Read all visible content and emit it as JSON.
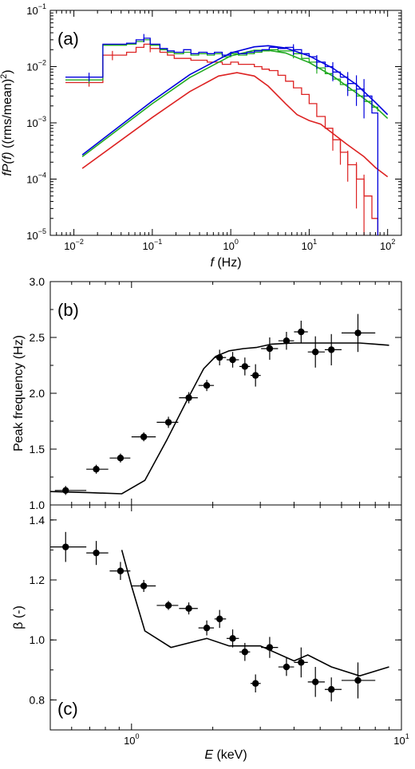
{
  "chart_data": [
    {
      "panel_label": "(a)",
      "type": "line",
      "x_scale": "log",
      "y_scale": "log",
      "xlim": [
        0.005,
        150
      ],
      "ylim": [
        1e-05,
        0.1
      ],
      "xlabel_var": "f",
      "xlabel_unit": " (Hz)",
      "ylabel_var": "fP(f)",
      "ylabel_unit": " ((rms/mean)",
      "ylabel_sup": "2",
      "ylabel_close": ")",
      "x_ticks": [
        {
          "base": "10",
          "exp": "−2",
          "value": 0.01
        },
        {
          "base": "10",
          "exp": "−1",
          "value": 0.1
        },
        {
          "base": "10",
          "exp": "0",
          "value": 1
        },
        {
          "base": "10",
          "exp": "1",
          "value": 10
        },
        {
          "base": "10",
          "exp": "2",
          "value": 100
        }
      ],
      "y_ticks": [
        {
          "base": "10",
          "exp": "−5",
          "value": 1e-05
        },
        {
          "base": "10",
          "exp": "−4",
          "value": 0.0001
        },
        {
          "base": "10",
          "exp": "−3",
          "value": 0.001
        },
        {
          "base": "10",
          "exp": "−2",
          "value": 0.01
        },
        {
          "base": "10",
          "exp": "−1",
          "value": 0.1
        }
      ],
      "series": [
        {
          "color": "#0000dd",
          "step_x": [
            0.0078,
            0.0156,
            0.0234,
            0.031,
            0.047,
            0.062,
            0.078,
            0.094,
            0.125,
            0.156,
            0.19,
            0.25,
            0.31,
            0.39,
            0.5,
            0.62,
            0.78,
            1.0,
            1.25,
            1.6,
            2.0,
            2.5,
            3.1,
            4.0,
            5.0,
            6.3,
            8.0,
            10.0,
            12.5,
            16.0,
            20.0,
            25.0,
            31.0,
            40.0,
            50.0,
            63.0,
            75.0
          ],
          "step_y": [
            0.0065,
            0.0065,
            0.025,
            0.025,
            0.026,
            0.03,
            0.032,
            0.025,
            0.021,
            0.019,
            0.018,
            0.02,
            0.017,
            0.018,
            0.017,
            0.018,
            0.016,
            0.018,
            0.017,
            0.018,
            0.019,
            0.02,
            0.022,
            0.021,
            0.022,
            0.02,
            0.017,
            0.015,
            0.012,
            0.01,
            0.008,
            0.0065,
            0.005,
            0.004,
            0.003,
            0.0015,
            1e-05
          ],
          "model_x": [
            0.0128,
            0.1,
            0.3,
            1.0,
            2.0,
            3.0,
            5.0,
            10.0,
            20.0,
            40.0,
            70.0,
            100.0
          ],
          "model_y": [
            0.00027,
            0.00245,
            0.0072,
            0.0175,
            0.0225,
            0.0235,
            0.0215,
            0.0155,
            0.0094,
            0.0048,
            0.0023,
            0.0014
          ],
          "errors": [
            {
              "x": 0.0156,
              "y": 0.0065,
              "dy": [
                0.0055,
                0.0078
              ]
            },
            {
              "x": 0.078,
              "y": 0.032,
              "dy": [
                0.027,
                0.038
              ]
            },
            {
              "x": 6.3,
              "y": 0.02,
              "dy": [
                0.016,
                0.025
              ]
            },
            {
              "x": 12.5,
              "y": 0.012,
              "dy": [
                0.009,
                0.016
              ]
            },
            {
              "x": 20.0,
              "y": 0.008,
              "dy": [
                0.0055,
                0.012
              ]
            },
            {
              "x": 31.0,
              "y": 0.005,
              "dy": [
                0.003,
                0.008
              ]
            },
            {
              "x": 40.0,
              "y": 0.004,
              "dy": [
                0.002,
                0.007
              ]
            },
            {
              "x": 50.0,
              "y": 0.003,
              "dy": [
                0.0012,
                0.006
              ]
            }
          ]
        },
        {
          "color": "#22aa22",
          "step_x": [
            0.0078,
            0.0156,
            0.0234,
            0.031,
            0.047,
            0.062,
            0.078,
            0.094,
            0.125,
            0.156,
            0.19,
            0.25,
            0.31,
            0.39,
            0.5,
            0.62,
            0.78,
            1.0,
            1.25,
            1.6,
            2.0,
            2.5,
            3.1,
            4.0,
            5.0,
            6.3,
            8.0,
            10.0,
            12.5,
            16.0,
            20.0,
            25.0,
            31.0,
            40.0,
            50.0,
            63.0,
            75.0
          ],
          "step_y": [
            0.0058,
            0.0058,
            0.024,
            0.024,
            0.025,
            0.028,
            0.03,
            0.024,
            0.02,
            0.018,
            0.017,
            0.018,
            0.016,
            0.017,
            0.016,
            0.017,
            0.015,
            0.017,
            0.016,
            0.017,
            0.018,
            0.019,
            0.02,
            0.019,
            0.019,
            0.017,
            0.014,
            0.012,
            0.0095,
            0.0075,
            0.006,
            0.0048,
            0.0038,
            0.003,
            0.0024,
            0.0019,
            0.0016
          ],
          "model_x": [
            0.0128,
            0.1,
            0.3,
            1.0,
            2.0,
            3.0,
            5.0,
            10.0,
            20.0,
            40.0,
            70.0,
            100.0
          ],
          "model_y": [
            0.00025,
            0.0022,
            0.0064,
            0.0155,
            0.0195,
            0.0195,
            0.0175,
            0.0118,
            0.0068,
            0.0034,
            0.0019,
            0.0012
          ],
          "errors": [
            {
              "x": 0.0156,
              "y": 0.0058,
              "dy": [
                0.005,
                0.0068
              ]
            },
            {
              "x": 6.3,
              "y": 0.017,
              "dy": [
                0.014,
                0.021
              ]
            },
            {
              "x": 12.5,
              "y": 0.0095,
              "dy": [
                0.0075,
                0.012
              ]
            }
          ]
        },
        {
          "color": "#dd2222",
          "step_x": [
            0.0078,
            0.0156,
            0.0234,
            0.031,
            0.047,
            0.062,
            0.078,
            0.094,
            0.125,
            0.156,
            0.19,
            0.25,
            0.31,
            0.39,
            0.5,
            0.62,
            0.78,
            1.0,
            1.25,
            1.6,
            2.0,
            2.5,
            3.1,
            4.0,
            5.0,
            6.3,
            8.0,
            10.0,
            12.5,
            16.0,
            20.0,
            25.0,
            31.0,
            40.0,
            50.0,
            63.0,
            75.0
          ],
          "step_y": [
            0.0052,
            0.0052,
            0.016,
            0.016,
            0.018,
            0.022,
            0.025,
            0.021,
            0.018,
            0.016,
            0.014,
            0.014,
            0.013,
            0.013,
            0.012,
            0.012,
            0.011,
            0.012,
            0.011,
            0.011,
            0.01,
            0.009,
            0.0085,
            0.007,
            0.0055,
            0.0042,
            0.0032,
            0.0022,
            0.0013,
            0.0008,
            0.0005,
            0.0003,
            0.00018,
            0.0001,
            5e-05,
            2e-05,
            1e-05
          ],
          "model_x": [
            0.0128,
            0.1,
            0.3,
            0.7,
            1.2,
            2.0,
            3.0,
            5.0,
            7.0,
            10.0,
            14.0,
            20.0,
            30.0,
            50.0,
            70.0,
            100.0
          ],
          "model_y": [
            0.000155,
            0.00125,
            0.0036,
            0.0068,
            0.0078,
            0.0068,
            0.0045,
            0.0022,
            0.0014,
            0.0011,
            0.00095,
            0.00065,
            0.00042,
            0.00025,
            0.00016,
            0.00011
          ],
          "errors": [
            {
              "x": 0.0156,
              "y": 0.0052,
              "dy": [
                0.0044,
                0.0061
              ]
            },
            {
              "x": 0.031,
              "y": 0.016,
              "dy": [
                0.013,
                0.019
              ]
            },
            {
              "x": 0.094,
              "y": 0.021,
              "dy": [
                0.018,
                0.026
              ]
            },
            {
              "x": 20.0,
              "y": 0.0005,
              "dy": [
                0.00032,
                0.00075
              ]
            },
            {
              "x": 25.0,
              "y": 0.0003,
              "dy": [
                0.00018,
                0.00048
              ]
            },
            {
              "x": 31.0,
              "y": 0.00018,
              "dy": [
                9e-05,
                0.00032
              ]
            },
            {
              "x": 40.0,
              "y": 0.0001,
              "dy": [
                3e-05,
                0.0002
              ]
            },
            {
              "x": 50.0,
              "y": 5e-05,
              "dy": [
                1e-05,
                0.00012
              ]
            }
          ]
        }
      ]
    },
    {
      "panel_label": "(b)",
      "type": "scatter",
      "x_scale": "log",
      "y_scale": "linear",
      "xlim": [
        0.5,
        10
      ],
      "ylim": [
        1.0,
        3.0
      ],
      "ylabel": "Peak frequency (Hz)",
      "y_ticks": [
        "1.0",
        "1.5",
        "2.0",
        "2.5",
        "3.0"
      ],
      "y_tick_values": [
        1.0,
        1.5,
        2.0,
        2.5,
        3.0
      ],
      "points": [
        {
          "x": 0.57,
          "y": 1.13,
          "xerr": [
            0.52,
            0.68
          ],
          "yerr": 0.04
        },
        {
          "x": 0.74,
          "y": 1.32,
          "xerr": [
            0.68,
            0.82
          ],
          "yerr": 0.04
        },
        {
          "x": 0.91,
          "y": 1.42,
          "xerr": [
            0.83,
            0.99
          ],
          "yerr": 0.04
        },
        {
          "x": 1.11,
          "y": 1.61,
          "xerr": [
            1.0,
            1.23
          ],
          "yerr": 0.04
        },
        {
          "x": 1.37,
          "y": 1.74,
          "xerr": [
            1.24,
            1.49
          ],
          "yerr": 0.05
        },
        {
          "x": 1.63,
          "y": 1.96,
          "xerr": [
            1.5,
            1.76
          ],
          "yerr": 0.05
        },
        {
          "x": 1.9,
          "y": 2.07,
          "xerr": [
            1.77,
            2.02
          ],
          "yerr": 0.05
        },
        {
          "x": 2.12,
          "y": 2.32,
          "xerr": [
            2.03,
            2.24
          ],
          "yerr": 0.07
        },
        {
          "x": 2.37,
          "y": 2.3,
          "xerr": [
            2.25,
            2.5
          ],
          "yerr": 0.07
        },
        {
          "x": 2.63,
          "y": 2.24,
          "xerr": [
            2.51,
            2.75
          ],
          "yerr": 0.08
        },
        {
          "x": 2.88,
          "y": 2.16,
          "xerr": [
            2.76,
            3.01
          ],
          "yerr": 0.1
        },
        {
          "x": 3.25,
          "y": 2.4,
          "xerr": [
            3.02,
            3.49
          ],
          "yerr": 0.1
        },
        {
          "x": 3.75,
          "y": 2.47,
          "xerr": [
            3.5,
            4.0
          ],
          "yerr": 0.08
        },
        {
          "x": 4.25,
          "y": 2.55,
          "xerr": [
            4.0,
            4.5
          ],
          "yerr": 0.1
        },
        {
          "x": 4.8,
          "y": 2.37,
          "xerr": [
            4.5,
            5.2
          ],
          "yerr": 0.14
        },
        {
          "x": 5.5,
          "y": 2.39,
          "xerr": [
            5.2,
            6.0
          ],
          "yerr": 0.14
        },
        {
          "x": 6.9,
          "y": 2.54,
          "xerr": [
            6.0,
            8.0
          ],
          "yerr": 0.17
        }
      ],
      "model_x": [
        0.5,
        0.7,
        0.92,
        1.12,
        1.35,
        1.6,
        1.85,
        2.05,
        2.3,
        2.6,
        2.9,
        3.3,
        4.0,
        5.0,
        6.0,
        7.0,
        8.0,
        9.0
      ],
      "model_y": [
        1.12,
        1.11,
        1.1,
        1.22,
        1.58,
        1.93,
        2.22,
        2.33,
        2.38,
        2.4,
        2.41,
        2.44,
        2.45,
        2.45,
        2.45,
        2.45,
        2.44,
        2.43
      ]
    },
    {
      "panel_label": "(c)",
      "type": "scatter",
      "x_scale": "log",
      "y_scale": "linear",
      "xlim": [
        0.5,
        10
      ],
      "ylim": [
        0.7,
        1.45
      ],
      "xlabel_var": "E",
      "xlabel_unit": " (keV)",
      "ylabel": "β (-)",
      "y_ticks": [
        "0.8",
        "1.0",
        "1.2",
        "1.4"
      ],
      "y_tick_values": [
        0.8,
        1.0,
        1.2,
        1.4
      ],
      "x_ticks": [
        {
          "base": "10",
          "exp": "0",
          "value": 1
        },
        {
          "base": "10",
          "exp": "1",
          "value": 10
        }
      ],
      "points": [
        {
          "x": 0.57,
          "y": 1.31,
          "xerr": [
            0.5,
            0.68
          ],
          "yerr": 0.05
        },
        {
          "x": 0.74,
          "y": 1.29,
          "xerr": [
            0.68,
            0.82
          ],
          "yerr": 0.04
        },
        {
          "x": 0.91,
          "y": 1.23,
          "xerr": [
            0.83,
            0.99
          ],
          "yerr": 0.03
        },
        {
          "x": 1.11,
          "y": 1.18,
          "xerr": [
            1.0,
            1.23
          ],
          "yerr": 0.02
        },
        {
          "x": 1.37,
          "y": 1.115,
          "xerr": [
            1.24,
            1.49
          ],
          "yerr": 0.015
        },
        {
          "x": 1.63,
          "y": 1.105,
          "xerr": [
            1.5,
            1.76
          ],
          "yerr": 0.02
        },
        {
          "x": 1.9,
          "y": 1.04,
          "xerr": [
            1.77,
            2.02
          ],
          "yerr": 0.025
        },
        {
          "x": 2.12,
          "y": 1.07,
          "xerr": [
            2.03,
            2.24
          ],
          "yerr": 0.03
        },
        {
          "x": 2.37,
          "y": 1.005,
          "xerr": [
            2.25,
            2.5
          ],
          "yerr": 0.03
        },
        {
          "x": 2.63,
          "y": 0.96,
          "xerr": [
            2.51,
            2.75
          ],
          "yerr": 0.03
        },
        {
          "x": 2.88,
          "y": 0.855,
          "xerr": [
            2.76,
            3.01
          ],
          "yerr": 0.03
        },
        {
          "x": 3.25,
          "y": 0.975,
          "xerr": [
            3.02,
            3.49
          ],
          "yerr": 0.035
        },
        {
          "x": 3.75,
          "y": 0.91,
          "xerr": [
            3.5,
            4.0
          ],
          "yerr": 0.03
        },
        {
          "x": 4.25,
          "y": 0.925,
          "xerr": [
            4.0,
            4.5
          ],
          "yerr": 0.05
        },
        {
          "x": 4.8,
          "y": 0.86,
          "xerr": [
            4.5,
            5.2
          ],
          "yerr": 0.05
        },
        {
          "x": 5.5,
          "y": 0.835,
          "xerr": [
            5.2,
            6.0
          ],
          "yerr": 0.04
        },
        {
          "x": 6.9,
          "y": 0.865,
          "xerr": [
            6.0,
            8.0
          ],
          "yerr": 0.06
        }
      ],
      "model_x": [
        0.92,
        1.0,
        1.12,
        1.4,
        1.9,
        2.3,
        3.0,
        4.0,
        4.5,
        5.5,
        7.0,
        9.0
      ],
      "model_y": [
        1.3,
        1.18,
        1.03,
        0.975,
        1.005,
        0.98,
        0.98,
        0.93,
        0.95,
        0.91,
        0.88,
        0.91
      ]
    }
  ]
}
